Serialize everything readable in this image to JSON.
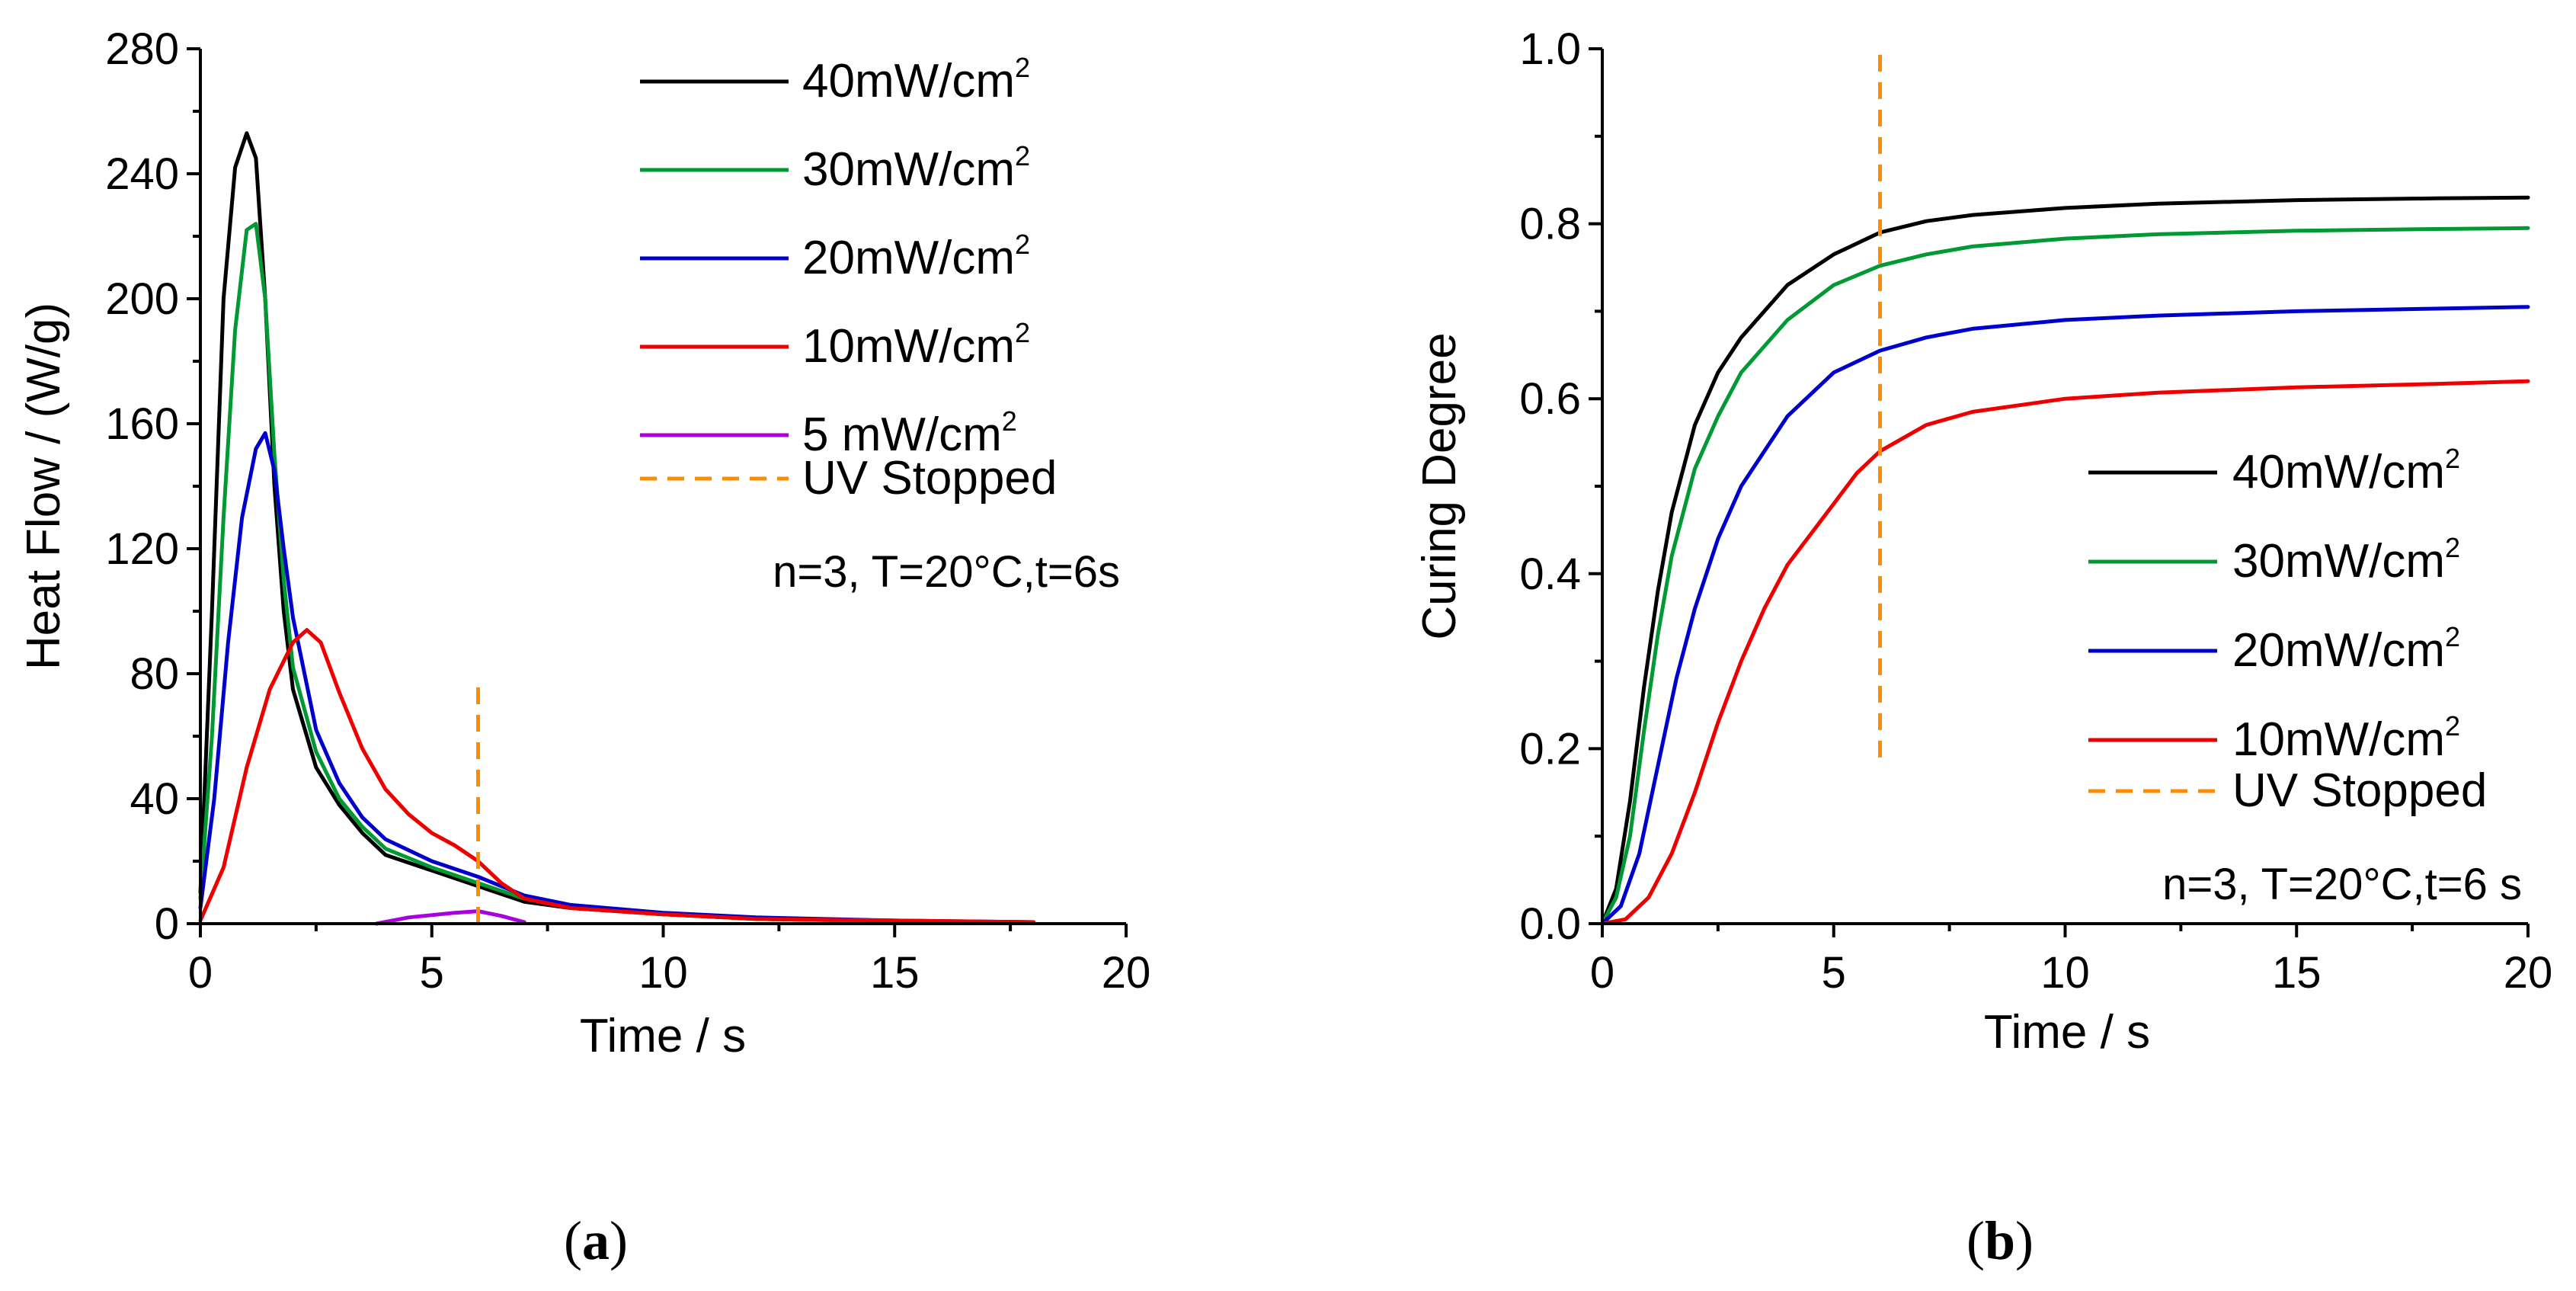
{
  "chart_data": [
    {
      "type": "line",
      "panel": "a",
      "panel_label": {
        "open": "(",
        "letter": "a",
        "close": ")"
      },
      "xlabel": "Time / s",
      "ylabel": "Heat Flow / (W/g)",
      "xlim": [
        0,
        20
      ],
      "ylim": [
        0,
        280
      ],
      "xticks": [
        0,
        5,
        10,
        15,
        20
      ],
      "yticks": [
        0,
        40,
        80,
        120,
        160,
        200,
        240,
        280
      ],
      "annotation": "n=3, T=20°C,t=6s",
      "uv_stop": {
        "x": 6,
        "y_range": [
          0,
          77
        ],
        "label": "UV Stopped",
        "color": "#FF8C00"
      },
      "series": [
        {
          "name": "40mW/cm",
          "sup": "2",
          "color": "#000000",
          "x": [
            0,
            0.25,
            0.5,
            0.75,
            1.0,
            1.2,
            1.4,
            1.6,
            1.8,
            2.0,
            2.5,
            3,
            3.5,
            4,
            5,
            6,
            7,
            8,
            10,
            12,
            15,
            18
          ],
          "y": [
            10,
            100,
            200,
            242,
            253,
            245,
            200,
            140,
            100,
            75,
            50,
            38,
            29,
            22,
            17,
            12,
            7,
            5,
            3,
            1.5,
            0.8,
            0.5
          ]
        },
        {
          "name": "30mW/cm",
          "sup": "2",
          "color": "#009933",
          "x": [
            0,
            0.25,
            0.5,
            0.75,
            1.0,
            1.2,
            1.4,
            1.6,
            1.8,
            2.0,
            2.5,
            3,
            3.5,
            4,
            5,
            6,
            7,
            8,
            10,
            12,
            15,
            18
          ],
          "y": [
            8,
            60,
            130,
            190,
            222,
            224,
            200,
            150,
            110,
            82,
            55,
            40,
            31,
            24,
            18,
            13,
            8,
            5.5,
            3,
            1.5,
            0.8,
            0.5
          ]
        },
        {
          "name": "20mW/cm",
          "sup": "2",
          "color": "#0000CC",
          "x": [
            0,
            0.3,
            0.6,
            0.9,
            1.2,
            1.4,
            1.6,
            1.8,
            2.0,
            2.5,
            3,
            3.5,
            4,
            5,
            6,
            7,
            8,
            10,
            12,
            15,
            18
          ],
          "y": [
            5,
            40,
            90,
            130,
            152,
            157,
            145,
            120,
            98,
            62,
            45,
            34,
            27,
            20,
            15,
            9,
            6,
            3.5,
            2,
            1,
            0.5
          ]
        },
        {
          "name": "10mW/cm",
          "sup": "2",
          "color": "#EE0000",
          "x": [
            0,
            0.5,
            1.0,
            1.5,
            2.0,
            2.3,
            2.6,
            3.0,
            3.5,
            4.0,
            4.5,
            5.0,
            5.5,
            6.0,
            6.5,
            7,
            8,
            10,
            12,
            15,
            18
          ],
          "y": [
            1,
            18,
            50,
            75,
            90,
            94,
            90,
            74,
            56,
            43,
            35,
            29,
            25,
            20,
            13,
            8,
            5,
            3,
            1.5,
            1,
            0.5
          ]
        },
        {
          "name": "5  mW/cm",
          "sup": "2",
          "color": "#AA00DD",
          "x": [
            3.8,
            4.5,
            5.5,
            6.0,
            6.5,
            7.0
          ],
          "y": [
            0,
            2,
            3.5,
            4,
            2.5,
            0.5
          ]
        }
      ]
    },
    {
      "type": "line",
      "panel": "b",
      "panel_label": {
        "open": "(",
        "letter": "b",
        "close": ")"
      },
      "xlabel": "Time / s",
      "ylabel": "Curing Degree",
      "xlim": [
        0,
        20
      ],
      "ylim": [
        0,
        1.0
      ],
      "xticks": [
        0,
        5,
        10,
        15,
        20
      ],
      "yticks": [
        0.0,
        0.2,
        0.4,
        0.6,
        0.8,
        1.0
      ],
      "ytick_labels": [
        "0.0",
        "0.2",
        "0.4",
        "0.6",
        "0.8",
        "1.0"
      ],
      "annotation": "n=3, T=20°C,t=6 s",
      "uv_stop": {
        "x": 6,
        "y_range": [
          0.19,
          1.0
        ],
        "label": "UV Stopped",
        "color": "#FF8C00"
      },
      "series": [
        {
          "name": "40mW/cm",
          "sup": "2",
          "color": "#000000",
          "x": [
            0,
            0.3,
            0.6,
            0.9,
            1.2,
            1.5,
            2,
            2.5,
            3,
            4,
            5,
            6,
            7,
            8,
            10,
            12,
            15,
            18,
            20
          ],
          "y": [
            0,
            0.04,
            0.14,
            0.27,
            0.38,
            0.47,
            0.57,
            0.63,
            0.67,
            0.73,
            0.765,
            0.79,
            0.803,
            0.81,
            0.818,
            0.823,
            0.827,
            0.829,
            0.83
          ]
        },
        {
          "name": "30mW/cm",
          "sup": "2",
          "color": "#009933",
          "x": [
            0,
            0.3,
            0.6,
            0.9,
            1.2,
            1.5,
            2,
            2.5,
            3,
            4,
            5,
            6,
            7,
            8,
            10,
            12,
            15,
            18,
            20
          ],
          "y": [
            0,
            0.03,
            0.1,
            0.22,
            0.33,
            0.42,
            0.52,
            0.58,
            0.63,
            0.69,
            0.73,
            0.752,
            0.765,
            0.774,
            0.783,
            0.788,
            0.792,
            0.794,
            0.795
          ]
        },
        {
          "name": "20mW/cm",
          "sup": "2",
          "color": "#0000CC",
          "x": [
            0,
            0.4,
            0.8,
            1.2,
            1.6,
            2.0,
            2.5,
            3,
            4,
            5,
            6,
            7,
            8,
            10,
            12,
            15,
            18,
            20
          ],
          "y": [
            0,
            0.02,
            0.08,
            0.18,
            0.28,
            0.36,
            0.44,
            0.5,
            0.58,
            0.63,
            0.655,
            0.67,
            0.68,
            0.69,
            0.695,
            0.7,
            0.703,
            0.705
          ]
        },
        {
          "name": "10mW/cm",
          "sup": "2",
          "color": "#EE0000",
          "x": [
            0,
            0.5,
            1.0,
            1.5,
            2.0,
            2.5,
            3,
            3.5,
            4,
            5,
            5.5,
            6,
            7,
            8,
            10,
            12,
            15,
            18,
            20
          ],
          "y": [
            0,
            0.005,
            0.03,
            0.08,
            0.15,
            0.23,
            0.3,
            0.36,
            0.41,
            0.48,
            0.515,
            0.54,
            0.57,
            0.585,
            0.6,
            0.607,
            0.613,
            0.617,
            0.62
          ]
        }
      ]
    }
  ]
}
